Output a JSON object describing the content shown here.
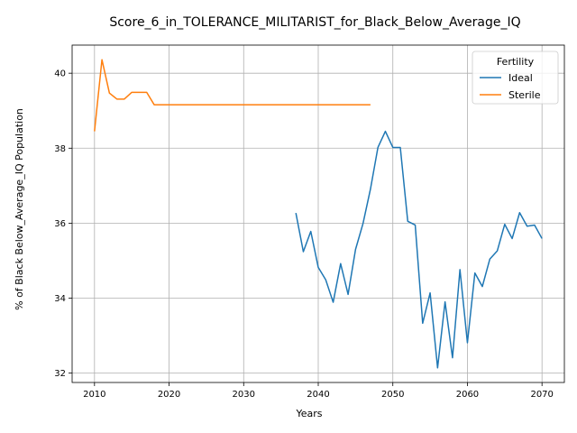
{
  "chart_data": {
    "type": "line",
    "title": "Score_6_in_TOLERANCE_MILITARIST_for_Black_Below_Average_IQ",
    "xlabel": "Years",
    "ylabel": "% of Black Below_Average_IQ Population",
    "xlim": [
      2007,
      2073
    ],
    "ylim": [
      31.75,
      40.75
    ],
    "xticks": [
      2010,
      2020,
      2030,
      2040,
      2050,
      2060,
      2070
    ],
    "yticks": [
      32,
      34,
      36,
      38,
      40
    ],
    "grid": true,
    "legend": {
      "title": "Fertility",
      "placement": "top-right"
    },
    "series": [
      {
        "name": "Ideal",
        "color": "#1f77b4",
        "x": [
          2037,
          2038,
          2039,
          2040,
          2041,
          2042,
          2043,
          2044,
          2045,
          2046,
          2047,
          2048,
          2049,
          2050,
          2051,
          2052,
          2053,
          2054,
          2055,
          2056,
          2057,
          2058,
          2059,
          2060,
          2061,
          2062,
          2063,
          2064,
          2065,
          2066,
          2067,
          2068,
          2069,
          2070
        ],
        "values": [
          36.27,
          35.24,
          35.78,
          34.82,
          34.49,
          33.89,
          34.92,
          34.1,
          35.3,
          35.99,
          36.91,
          38.02,
          38.45,
          38.02,
          38.02,
          36.05,
          35.95,
          33.33,
          34.14,
          32.14,
          33.9,
          32.41,
          34.76,
          32.81,
          34.67,
          34.31,
          35.04,
          35.26,
          35.97,
          35.59,
          36.28,
          35.92,
          35.95,
          35.59
        ]
      },
      {
        "name": "Sterile",
        "color": "#ff7f0e",
        "x": [
          2010,
          2011,
          2012,
          2013,
          2014,
          2015,
          2016,
          2017,
          2018,
          2019,
          2020,
          2021,
          2022,
          2023,
          2024,
          2025,
          2026,
          2027,
          2028,
          2029,
          2030,
          2031,
          2032,
          2033,
          2034,
          2035,
          2036,
          2037,
          2038,
          2039,
          2040,
          2041,
          2042,
          2043,
          2044,
          2045,
          2046,
          2047
        ],
        "values": [
          38.45,
          40.36,
          39.47,
          39.31,
          39.31,
          39.49,
          39.49,
          39.49,
          39.16,
          39.16,
          39.16,
          39.16,
          39.16,
          39.16,
          39.16,
          39.16,
          39.16,
          39.16,
          39.16,
          39.16,
          39.16,
          39.16,
          39.16,
          39.16,
          39.16,
          39.16,
          39.16,
          39.16,
          39.16,
          39.16,
          39.16,
          39.16,
          39.16,
          39.16,
          39.16,
          39.16,
          39.16,
          39.16
        ]
      }
    ]
  }
}
